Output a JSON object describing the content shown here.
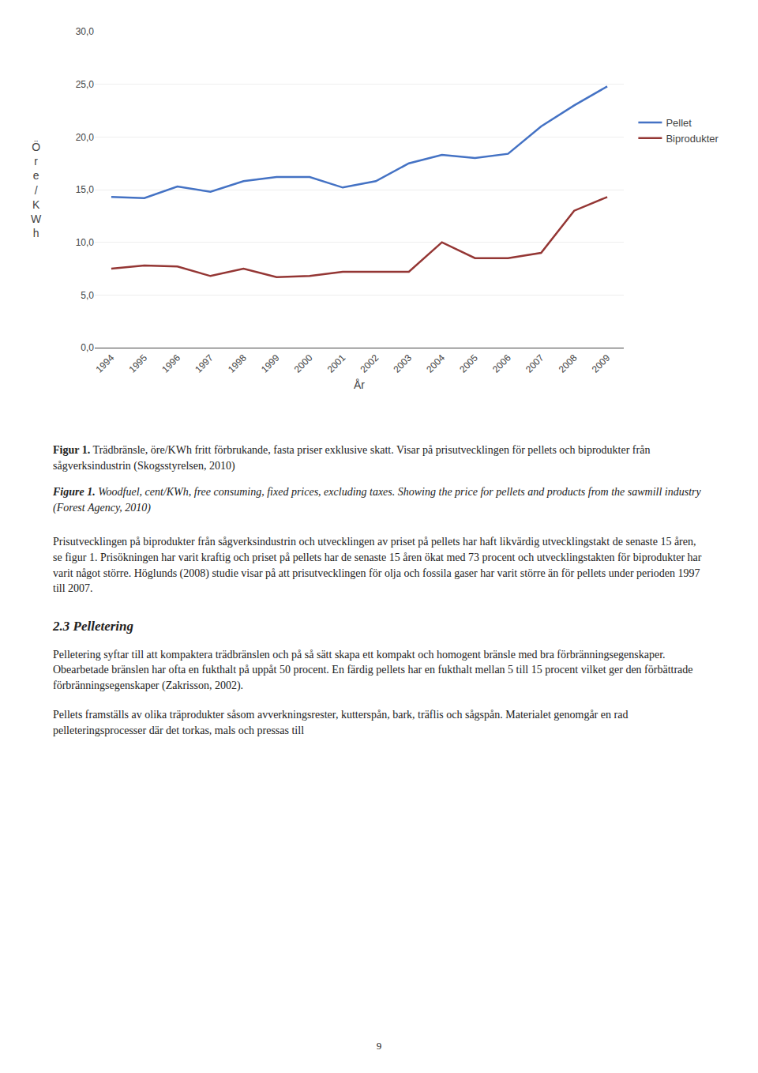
{
  "chart_data": {
    "type": "line",
    "x": [
      1994,
      1995,
      1996,
      1997,
      1998,
      1999,
      2000,
      2001,
      2002,
      2003,
      2004,
      2005,
      2006,
      2007,
      2008,
      2009
    ],
    "series": [
      {
        "name": "Pellet",
        "color": "#4472C4",
        "values": [
          14.3,
          14.2,
          15.3,
          14.8,
          15.8,
          16.2,
          16.2,
          15.2,
          15.8,
          17.5,
          18.3,
          18.0,
          18.4,
          21.0,
          23.0,
          24.8
        ]
      },
      {
        "name": "Biprodukter",
        "color": "#943634",
        "values": [
          7.5,
          7.8,
          7.7,
          6.8,
          7.5,
          6.7,
          6.8,
          7.2,
          7.2,
          7.2,
          10.0,
          8.5,
          8.5,
          9.0,
          13.0,
          14.3
        ]
      }
    ],
    "xlabel": "År",
    "ylabel": "Ö\nr\ne\n/\nK\nW\nh",
    "xlim": [
      1993.5,
      2009.5
    ],
    "xticks": [
      1994,
      1995,
      1996,
      1997,
      1998,
      1999,
      2000,
      2001,
      2002,
      2003,
      2004,
      2005,
      2006,
      2007,
      2008,
      2009
    ],
    "ylim": [
      0.0,
      30.0
    ],
    "yticks": [
      {
        "value": 0.0,
        "label": "0,0"
      },
      {
        "value": 5.0,
        "label": "5,0"
      },
      {
        "value": 10.0,
        "label": "10,0"
      },
      {
        "value": 15.0,
        "label": "15,0"
      },
      {
        "value": 20.0,
        "label": "20,0"
      },
      {
        "value": 25.0,
        "label": "25,0"
      },
      {
        "value": 30.0,
        "label": "30,0"
      }
    ],
    "grid": true,
    "legend": "right",
    "annotations": [
      "Figur 1.",
      "Trädbränsle, öre/KWh fritt förbrukande, fasta priser exklusive skatt. Visar på prisutvecklingen för pellets och biprodukter från sågverksindustrin (Skogsstyrelsen, 2010)",
      "Figure 1.",
      "Woodfuel, cent/KWh, free consuming, fixed prices, excluding taxes. Showing the price for pellets and products from the sawmill industry (Forest Agency, 2010)",
      "Prisutvecklingen på biprodukter från sågverksindustrin och utvecklingen av priset på pellets har haft likvärdig utvecklingstakt de senaste 15 åren, se figur 1. Prisökningen har varit kraftig och priset på pellets har de senaste 15 åren ökat med 73 procent och utvecklingstakten för biprodukter har varit något större. Höglunds (2008) studie visar på att prisutvecklingen för olja och fossila gaser har varit större än för pellets under perioden 1997 till 2007.",
      "2.3 Pelletering",
      "Pelletering syftar till att kompaktera trädbränslen och på så sätt skapa ett kompakt och homogent bränsle med bra förbränningsegenskaper. Obearbetade bränslen har ofta en fukthalt på uppåt 50 procent. En färdig pellets har en fukthalt mellan 5 till 15 procent vilket ger den förbättrade förbränningsegenskaper (Zakrisson, 2002).",
      "Pellets framställs av olika träprodukter såsom avverkningsrester, kutterspån, bark, träflis och sågspån. Materialet genomgår en rad pelleteringsprocesser där det torkas, mals och pressas till",
      "9"
    ]
  }
}
